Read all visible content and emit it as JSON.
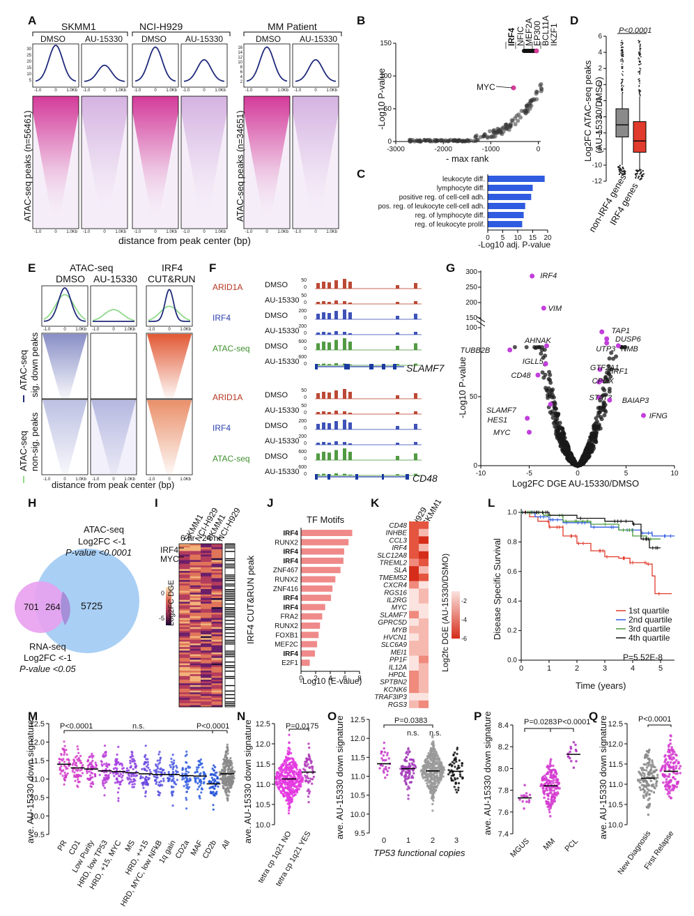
{
  "colors": {
    "navy": "#1f2a7a",
    "magenta": "#d43b9a",
    "blue": "#2f5be0",
    "red": "#e03b2c",
    "salmon": "#f08a8a",
    "green": "#4a9a3a",
    "lightgreen": "#8fd98a",
    "grey": "#8a8a8a",
    "pink": "#e878e0",
    "lightblue": "#a9cff5"
  },
  "A": {
    "label": "A",
    "groups": [
      "SKMM1",
      "NCI-H929",
      "MM Patient"
    ],
    "conds": [
      "DMSO",
      "AU-15330",
      "DMSO",
      "AU-15330",
      "DMSO",
      "AU-15330"
    ],
    "ylab1": "ATAC-seq peaks (n=56461)",
    "ylab2": "ATAC-seq peaks (n=34651)",
    "xlab": "distance from peak center (bp)",
    "ticks": [
      "-1.0",
      "0",
      "1.0Kb"
    ],
    "yt1": [
      "30",
      "25",
      "20",
      "15",
      "10",
      "5"
    ],
    "yt2": [
      "16",
      "14",
      "12",
      "10",
      "8",
      "6",
      "4",
      "2"
    ],
    "curve_heights": [
      1.0,
      0.45,
      0.95,
      0.6,
      0.95,
      0.6
    ]
  },
  "B": {
    "label": "B",
    "genes": [
      "IRF4",
      "NFIC",
      "MEF2A",
      "EP300",
      "BCL11A",
      "IKZF1"
    ],
    "myc": "MYC",
    "ylab": "-Log10 P-value",
    "xlab": "- max rank",
    "xticks": [
      "-3000",
      "-2000",
      "-1000",
      "0"
    ],
    "yticks": [
      "150",
      "100",
      "50",
      "0"
    ]
  },
  "C": {
    "label": "C",
    "terms": [
      "leukocyte diff.",
      "lymphocyte diff.",
      "positive reg. of cell-cell adh.",
      "pos. reg. of leukocyte cell-cell adh.",
      "reg. of lymphocyte diff.",
      "reg. of leukocyte prolif."
    ],
    "values": [
      19,
      15,
      14.5,
      12.5,
      12,
      11.5
    ],
    "xlab": "-Log10 adj. P-value",
    "xticks": [
      "0",
      "5",
      "10",
      "15",
      "20"
    ]
  },
  "D": {
    "label": "D",
    "p": "P<0.0001",
    "ylab1": "Log2FC ATAC-seq peaks",
    "ylab2": "(AU-15330/DMSO)",
    "cats": [
      "non-IRF4 genes",
      "IRF4 genes"
    ],
    "yticks": [
      "6",
      "4",
      "2",
      "0",
      "-2",
      "-4",
      "-6",
      "-8",
      "-10",
      "-12"
    ]
  },
  "E": {
    "label": "E",
    "heads": [
      "ATAC-seq",
      "IRF4",
      "DMSO",
      "AU-15330",
      "CUT&RUN"
    ],
    "row1": "ATAC-seq",
    "row1b": "sig. down peaks",
    "row2": "ATAC-seq",
    "row2b": "non-sig. peaks",
    "xlab": "distance from peak center (bp)",
    "ticks": [
      "-1.0",
      "0",
      "1.0Kb"
    ]
  },
  "F": {
    "label": "F",
    "tracks": [
      {
        "name": "ARID1A",
        "c": "#b5351f",
        "rows": [
          [
            "DMSO",
            "50"
          ],
          [
            "AU-15330",
            "50"
          ]
        ]
      },
      {
        "name": "IRF4",
        "c": "#2a3fb0",
        "rows": [
          [
            "DMSO",
            "200"
          ],
          [
            "AU-15330",
            "200"
          ]
        ]
      },
      {
        "name": "ATAC-seq",
        "c": "#3f8f2f",
        "rows": [
          [
            "DMSO",
            "600"
          ],
          [
            "AU-15330",
            "600"
          ]
        ]
      }
    ],
    "gene1": "SLAMF7",
    "gene2": "CD48",
    "zero": "0"
  },
  "G": {
    "label": "G",
    "genes": [
      "IRF4",
      "VIM",
      "AHNAK",
      "TUBB2B",
      "IGLL5",
      "CD48",
      "SLAMF7",
      "HES1",
      "MYC",
      "TAP1",
      "DUSP6",
      "UTP3",
      "NMB",
      "GTF2A1",
      "IRF1",
      "CPOX",
      "STAT3",
      "BAIAP3",
      "IFNG"
    ],
    "ylab": "-Log10 P-value",
    "xlab": "Log2FC DGE AU-15330/DMSO",
    "yticks_top": [
      "300",
      "250",
      "200",
      "150"
    ],
    "yticks": [
      "100",
      "50",
      "0"
    ],
    "xticks": [
      "-10",
      "-5",
      "0",
      "5",
      "10"
    ]
  },
  "H": {
    "label": "H",
    "atac1": "ATAC-seq",
    "atac2": "Log2FC <-1",
    "atac3": "P-value <0.0001",
    "rna1": "RNA-seq",
    "rna2": "Log2FC <-1",
    "rna3": "P-value <0.05",
    "n1": "701",
    "n2": "264",
    "n3": "5725"
  },
  "I": {
    "label": "I",
    "cols": [
      "SKMM1",
      "NCI-H929",
      "SKMM1",
      "NCI-H929"
    ],
    "t1": "6 hr",
    "t2": "24 hr",
    "g1": "IRF4",
    "g2": "MYC",
    "cbar": [
      "0",
      "-5"
    ],
    "cbarlab": "Log2FC DGE",
    "side": "IRF4 CUT&RUN peak"
  },
  "J": {
    "label": "J",
    "title": "TF Motifs",
    "motifs": [
      "IRF4",
      "RUNX2",
      "IRF4",
      "IRF4",
      "ZNF467",
      "RUNX2",
      "ZNF416",
      "IRF4",
      "IRF4",
      "FRA2",
      "RUNX2",
      "FOXB1",
      "MEF2C",
      "IRF4",
      "E2F1"
    ],
    "values": [
      7,
      6.5,
      5.9,
      5.8,
      5.4,
      4.7,
      4.3,
      4.1,
      3.3,
      2.9,
      2.6,
      2.4,
      2.2,
      1.9,
      1.2
    ],
    "xlab": "-Log10 (E-value)",
    "xticks": [
      "0",
      "2",
      "4",
      "6",
      "8"
    ]
  },
  "K": {
    "label": "K",
    "cols": [
      "H929",
      "SKMM1"
    ],
    "genes": [
      "CD48",
      "INHBE",
      "CCL3",
      "IRF4",
      "SLC12A8",
      "TREML2",
      "SLA",
      "TMEM52",
      "CXCR4",
      "RGS16",
      "IL2RG",
      "MYC",
      "SLAMF7",
      "GPRC5D",
      "MYB",
      "HVCN1",
      "SLC6A9",
      "MEI1",
      "PP1F",
      "IL12A",
      "HPDL",
      "SPTBN2",
      "KCNK6",
      "TRAF3IP3",
      "RGS3"
    ],
    "cbar": [
      "-2",
      "-4",
      "-6"
    ],
    "cbarlab": "Log2fc DGE (AU-15330/DSMO)"
  },
  "L": {
    "label": "L",
    "ylab": "Disease Specific Survival",
    "xlab": "Time (years)",
    "legend": [
      "1st quartile",
      "2nd quartile",
      "3rd quartile",
      "4th quartile"
    ],
    "p": "P=5.52E-8",
    "xticks": [
      "0",
      "1",
      "2",
      "3",
      "4",
      "5"
    ],
    "yticks": [
      "1.0",
      "0.8",
      "0.6",
      "0.4",
      "0.2",
      "0.0"
    ]
  },
  "M": {
    "label": "M",
    "ylab": "ave. AU-15330 down signature",
    "p1": "P<0.0001",
    "ns": "n.s.",
    "p2": "P<0.0001",
    "cats": [
      "PR",
      "CD1",
      "Low Purity",
      "HRD, low TP53",
      "HRD, +15, MYC",
      "MS",
      "HRD, ++15",
      "HRD, MYC, low NFkB",
      "1q gain",
      "CD2a",
      "MAF",
      "CD2b",
      "All"
    ],
    "medians": [
      11.4,
      11.3,
      11.27,
      11.22,
      11.2,
      11.17,
      11.14,
      11.12,
      11.12,
      11.09,
      11.08,
      10.87,
      11.14
    ],
    "yticks": [
      "12.5",
      "12.0",
      "11.5",
      "11.0",
      "10.5",
      "10.0",
      "9.5"
    ]
  },
  "N": {
    "label": "N",
    "ylab": "ave. AU-15330 down signature",
    "p": "P=0.0175",
    "cats": [
      "tetra cp 1q21 NO",
      "tetra cp 1q21 YES"
    ],
    "medians": [
      11.13,
      11.3
    ],
    "yticks": [
      "12.5",
      "12.0",
      "11.5",
      "11.0",
      "10.5",
      "10.0"
    ]
  },
  "O": {
    "label": "O",
    "ylab": "ave. AU-15330 down signature",
    "p": "P=0.0383",
    "ns": "n.s.",
    "xlab": "TP53 functional copies",
    "cats": [
      "0",
      "1",
      "2",
      "3"
    ],
    "medians": [
      11.33,
      11.2,
      11.14,
      11.13
    ],
    "yticks": [
      "12.5",
      "12.0",
      "11.5",
      "11.0",
      "10.5",
      "10.0",
      "9.5"
    ]
  },
  "P": {
    "label": "P",
    "ylab": "ave. AU-15330 down signature",
    "p1": "P=0.0283",
    "p2": "P<0.0001",
    "cats": [
      "MGUS",
      "MM",
      "PCL"
    ],
    "medians": [
      7.73,
      7.84,
      8.13
    ],
    "yticks": [
      "8.4",
      "8.2",
      "8.0",
      "7.8",
      "7.6",
      "7.4"
    ]
  },
  "Q": {
    "label": "Q",
    "ylab": "ave. AU-15330 down signature",
    "p": "P<0.0001",
    "cats": [
      "New Diagnosis",
      "First Relapse"
    ],
    "medians": [
      11.15,
      11.32
    ],
    "yticks": [
      "12.5",
      "12.0",
      "11.5",
      "11.0",
      "10.5",
      "10.0"
    ]
  }
}
